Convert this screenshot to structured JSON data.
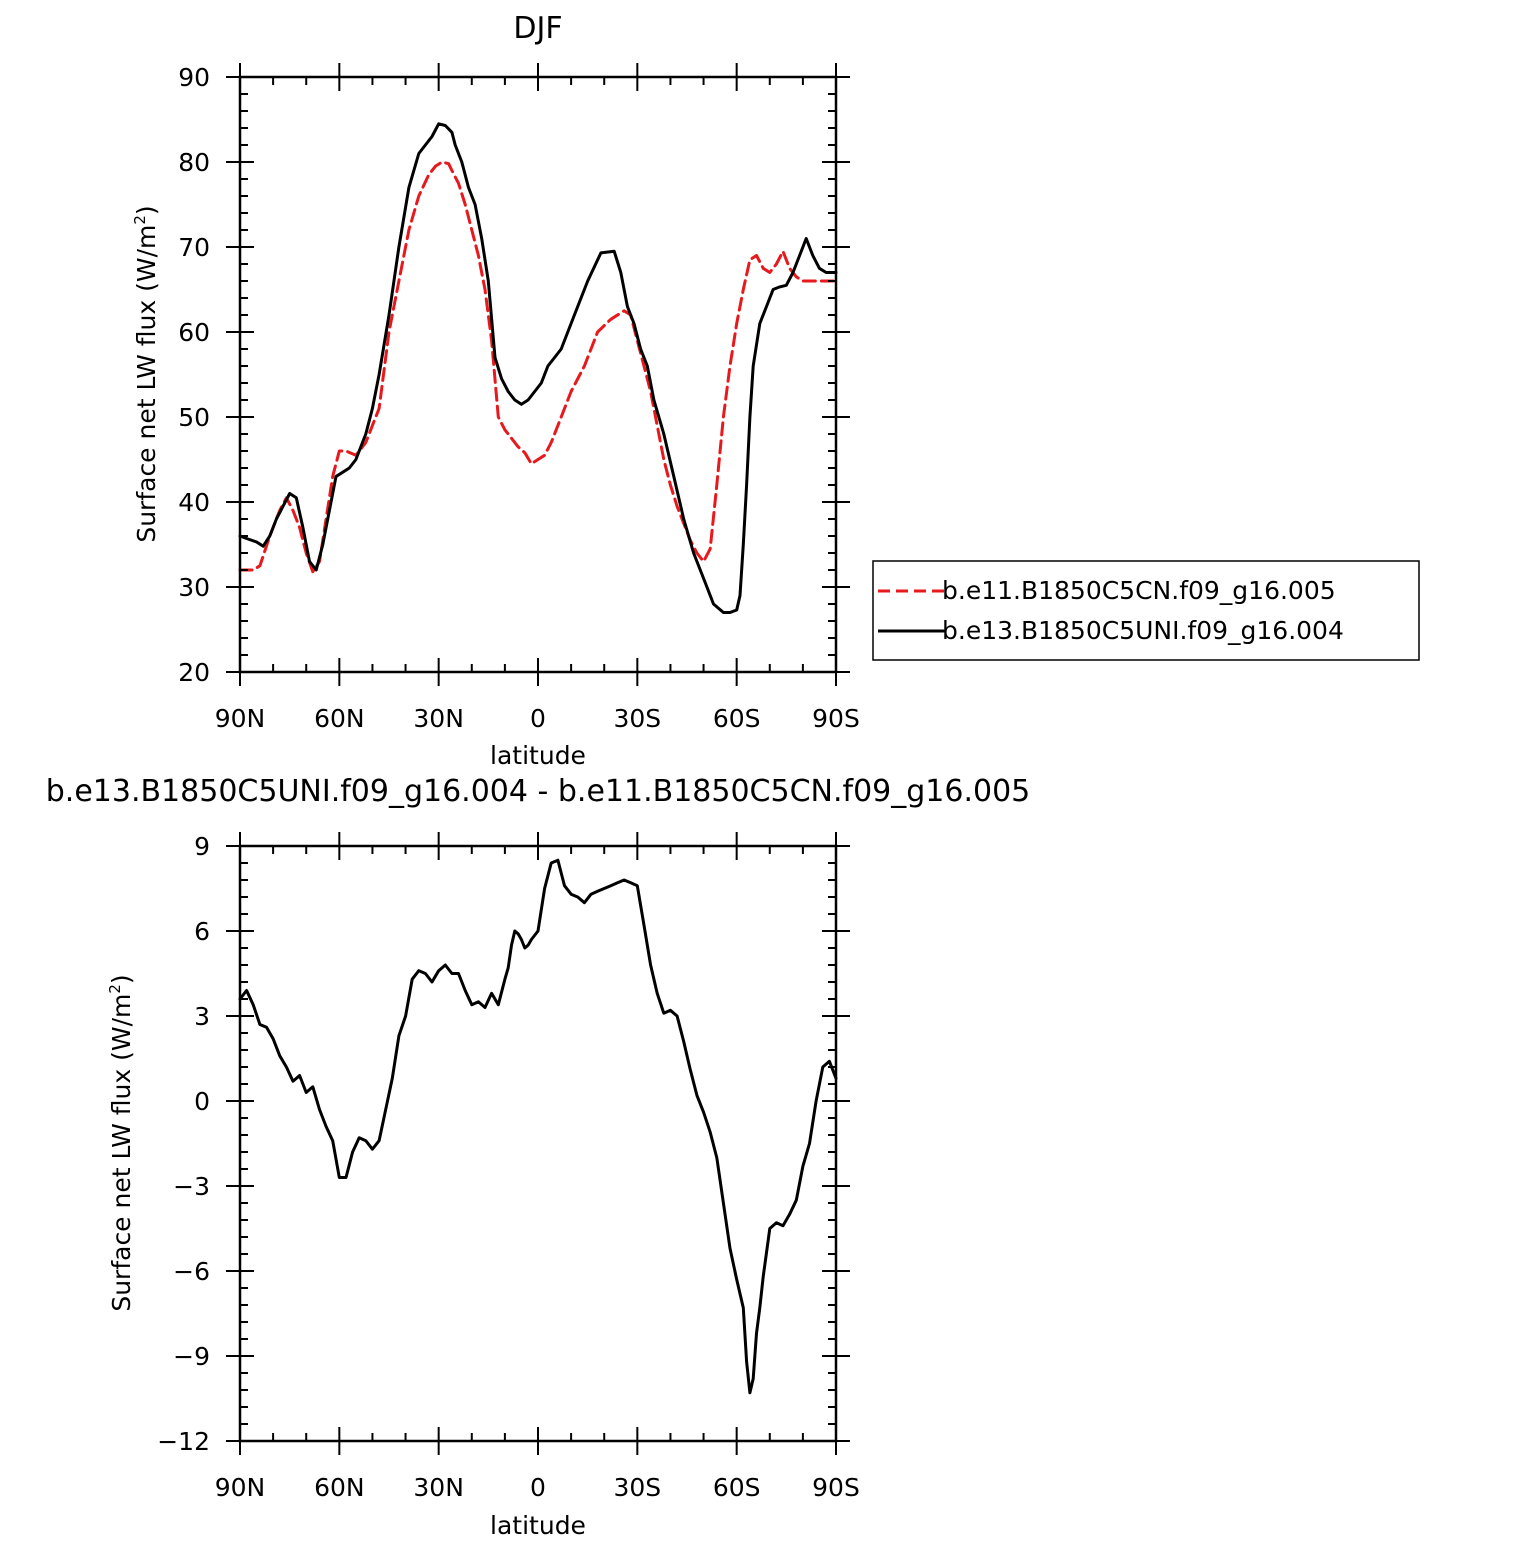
{
  "chart_data": [
    {
      "type": "line",
      "title": "DJF",
      "xlabel": "latitude",
      "ylabel": "Surface net LW flux (W/m",
      "ylabel_sup": "2",
      "ylabel_close": ")",
      "xlim": [
        -90,
        90
      ],
      "ylim": [
        20,
        90
      ],
      "x_ticks": [
        {
          "value": -90,
          "label": "90N"
        },
        {
          "value": -60,
          "label": "60N"
        },
        {
          "value": -30,
          "label": "30N"
        },
        {
          "value": 0,
          "label": "0"
        },
        {
          "value": 30,
          "label": "30S"
        },
        {
          "value": 60,
          "label": "60S"
        },
        {
          "value": 90,
          "label": "90S"
        }
      ],
      "y_ticks": [
        {
          "value": 20,
          "label": "20"
        },
        {
          "value": 30,
          "label": "30"
        },
        {
          "value": 40,
          "label": "40"
        },
        {
          "value": 50,
          "label": "50"
        },
        {
          "value": 60,
          "label": "60"
        },
        {
          "value": 70,
          "label": "70"
        },
        {
          "value": 80,
          "label": "80"
        },
        {
          "value": 90,
          "label": "90"
        }
      ],
      "grid": false,
      "legend_position": "right",
      "series": [
        {
          "name": "b.e11.B1850C5CN.f09_g16.005",
          "color": "#e8191c",
          "dash": "dashed",
          "x": [
            -90,
            -86,
            -84,
            -81,
            -78,
            -76,
            -74,
            -72,
            -70,
            -68,
            -66,
            -64,
            -62,
            -60,
            -58,
            -55,
            -52,
            -50,
            -48,
            -45,
            -42,
            -39,
            -36,
            -33,
            -31,
            -29,
            -27,
            -26,
            -24,
            -22,
            -20,
            -18,
            -16,
            -14,
            -12,
            -10,
            -8,
            -6,
            -4,
            -2,
            0,
            2,
            4,
            6,
            8,
            10,
            14,
            18,
            22,
            26,
            28,
            30,
            32,
            34,
            36,
            38,
            40,
            42,
            44,
            46,
            48,
            50,
            52,
            54,
            56,
            58,
            60,
            62,
            64,
            66,
            68,
            70,
            72,
            74,
            76,
            78,
            80,
            82,
            84,
            86,
            88,
            90
          ],
          "y": [
            32,
            32,
            32.5,
            36,
            39,
            40.5,
            39,
            37,
            34,
            31.8,
            33,
            38,
            43,
            46,
            46,
            45.5,
            47,
            49,
            51,
            60,
            66,
            72,
            76,
            78.5,
            79.5,
            80,
            79.8,
            79,
            77.5,
            75,
            72,
            69,
            65,
            59,
            50,
            48.5,
            47.5,
            46.5,
            45.8,
            44.5,
            45,
            45.5,
            47,
            49,
            51,
            53,
            56,
            60,
            61.5,
            62.5,
            62,
            59,
            56,
            53,
            49,
            45,
            42,
            39.5,
            37.5,
            35.5,
            34,
            33,
            34.5,
            42,
            50,
            56,
            61,
            65,
            68.5,
            69,
            67.5,
            67,
            68,
            69.5,
            67.5,
            66.5,
            66,
            66,
            66,
            66,
            66,
            66
          ]
        },
        {
          "name": "b.e13.B1850C5UNI.f09_g16.004",
          "color": "#000000",
          "dash": "solid",
          "x": [
            -90,
            -88,
            -85,
            -83,
            -81,
            -79,
            -77,
            -75,
            -73,
            -71,
            -69,
            -67,
            -65,
            -63,
            -61,
            -59,
            -57,
            -55,
            -52,
            -50,
            -48,
            -45,
            -42,
            -39,
            -36,
            -34,
            -32,
            -30,
            -28,
            -26,
            -25,
            -23,
            -21,
            -19,
            -17,
            -15,
            -13,
            -11,
            -9,
            -7,
            -5,
            -3,
            -1,
            1,
            3,
            5,
            7,
            9,
            11,
            15,
            19,
            23,
            25,
            27,
            29,
            31,
            33,
            35,
            38,
            41,
            44,
            47,
            50,
            53,
            56,
            58,
            60,
            61,
            62,
            63,
            64,
            65,
            67,
            69,
            71,
            73,
            75,
            77,
            79,
            81,
            83,
            85,
            87,
            88,
            89,
            90
          ],
          "y": [
            36,
            35.7,
            35.3,
            34.8,
            36,
            38,
            39.5,
            41,
            40.5,
            37,
            33,
            32,
            35,
            39,
            43,
            43.5,
            44,
            45,
            48,
            51,
            55,
            62,
            70,
            77,
            81,
            82,
            83,
            84.5,
            84.3,
            83.5,
            82,
            80,
            77,
            75,
            71,
            66,
            57,
            54.5,
            53,
            52,
            51.5,
            52,
            53,
            54,
            56,
            57,
            58,
            60,
            62,
            66,
            69.3,
            69.5,
            67,
            63,
            61,
            58,
            56,
            52,
            48,
            43,
            38,
            34,
            31,
            28,
            27,
            27,
            27.3,
            29,
            35,
            42,
            50,
            56,
            61,
            63,
            65,
            65.3,
            65.5,
            67,
            69,
            71,
            69,
            67.5,
            67,
            67,
            67,
            67
          ]
        }
      ]
    },
    {
      "type": "line",
      "title": "b.e13.B1850C5UNI.f09_g16.004 - b.e11.B1850C5CN.f09_g16.005",
      "xlabel": "latitude",
      "ylabel": "Surface net LW flux (W/m",
      "ylabel_sup": "2",
      "ylabel_close": ")",
      "xlim": [
        -90,
        90
      ],
      "ylim": [
        -12,
        9
      ],
      "x_ticks": [
        {
          "value": -90,
          "label": "90N"
        },
        {
          "value": -60,
          "label": "60N"
        },
        {
          "value": -30,
          "label": "30N"
        },
        {
          "value": 0,
          "label": "0"
        },
        {
          "value": 30,
          "label": "30S"
        },
        {
          "value": 60,
          "label": "60S"
        },
        {
          "value": 90,
          "label": "90S"
        }
      ],
      "y_ticks": [
        {
          "value": -12,
          "label": "−12"
        },
        {
          "value": -9,
          "label": "−9"
        },
        {
          "value": -6,
          "label": "−6"
        },
        {
          "value": -3,
          "label": "−3"
        },
        {
          "value": 0,
          "label": "0"
        },
        {
          "value": 3,
          "label": "3"
        },
        {
          "value": 6,
          "label": "6"
        },
        {
          "value": 9,
          "label": "9"
        }
      ],
      "grid": false,
      "series": [
        {
          "color": "#000000",
          "dash": "solid",
          "x": [
            -90,
            -88,
            -86,
            -84,
            -82,
            -80,
            -78,
            -76,
            -74,
            -72,
            -70,
            -68,
            -66,
            -64,
            -62,
            -60,
            -58,
            -56,
            -54,
            -52,
            -50,
            -48,
            -46,
            -44,
            -42,
            -40,
            -38,
            -36,
            -34,
            -32,
            -30,
            -28,
            -26,
            -24,
            -22,
            -20,
            -18,
            -16,
            -14,
            -12,
            -10,
            -9,
            -8,
            -7,
            -6,
            -5,
            -4,
            -3,
            -2,
            0,
            2,
            4,
            6,
            8,
            10,
            12,
            14,
            16,
            18,
            20,
            22,
            24,
            26,
            28,
            30,
            32,
            34,
            36,
            38,
            40,
            42,
            44,
            46,
            48,
            50,
            52,
            54,
            56,
            58,
            60,
            62,
            63,
            64,
            65,
            66,
            67,
            68,
            70,
            72,
            74,
            76,
            78,
            80,
            82,
            84,
            86,
            88,
            90
          ],
          "y": [
            3.6,
            3.9,
            3.4,
            2.7,
            2.6,
            2.2,
            1.6,
            1.2,
            0.7,
            0.9,
            0.3,
            0.5,
            -0.3,
            -0.9,
            -1.4,
            -2.7,
            -2.7,
            -1.8,
            -1.3,
            -1.4,
            -1.7,
            -1.4,
            -0.3,
            0.8,
            2.3,
            3.0,
            4.3,
            4.6,
            4.5,
            4.2,
            4.6,
            4.8,
            4.5,
            4.5,
            3.9,
            3.4,
            3.5,
            3.3,
            3.8,
            3.4,
            4.3,
            4.7,
            5.5,
            6.0,
            5.9,
            5.7,
            5.4,
            5.5,
            5.7,
            6.0,
            7.5,
            8.4,
            8.5,
            7.6,
            7.3,
            7.2,
            7.0,
            7.3,
            7.4,
            7.5,
            7.6,
            7.7,
            7.8,
            7.7,
            7.6,
            6.2,
            4.8,
            3.8,
            3.1,
            3.2,
            3.0,
            2.1,
            1.1,
            0.2,
            -0.4,
            -1.1,
            -2.0,
            -3.6,
            -5.2,
            -6.3,
            -7.3,
            -9.2,
            -10.3,
            -9.8,
            -8.2,
            -7.3,
            -6.2,
            -4.5,
            -4.3,
            -4.4,
            -4.0,
            -3.5,
            -2.3,
            -1.5,
            0.0,
            1.2,
            1.4,
            0.8
          ]
        }
      ]
    }
  ]
}
